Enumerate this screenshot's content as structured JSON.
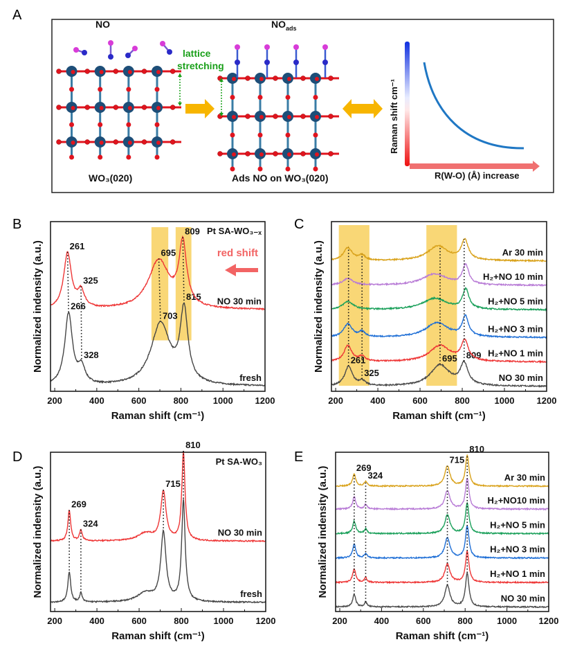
{
  "panel_a": {
    "label": "A",
    "left_molecule_label": "NO",
    "left_surface_label": "WO₃(020)",
    "right_molecule_label_main": "NO",
    "right_molecule_label_sub": "ads",
    "right_surface_label": "Ads NO on WO₃(020)",
    "lattice_label_line1": "lattice",
    "lattice_label_line2": "stretching",
    "schematic_y_label": "Raman shift cm⁻¹",
    "schematic_x_label": "R(W-O) (Å) increase",
    "colors": {
      "W": "#1d4e78",
      "O": "#e0141e",
      "N": "#2a2ac8",
      "O_ads": "#d83cd8",
      "arrow": "#f7b500",
      "lattice": "#1aa01a",
      "curve": "#1f77c4"
    }
  },
  "chart_data": [
    {
      "panel": "B",
      "type": "line",
      "xlabel": "Raman shift (cm⁻¹)",
      "ylabel": "Normalized indensity (a.u.)",
      "xlim": [
        180,
        1200
      ],
      "xticks": [
        200,
        400,
        600,
        800,
        1000,
        1200
      ],
      "corner_label": "Pt SA-WO₃₋ₓ",
      "annotation": "red shift",
      "annotation_color": "#f26464",
      "bands": [
        [
          660,
          740
        ],
        [
          775,
          850
        ]
      ],
      "band_color": "#f7c948",
      "series": [
        {
          "name": "fresh",
          "color": "#454545",
          "baseline": 0.03,
          "peaks": [
            [
              266,
              0.44,
              22,
              "266"
            ],
            [
              328,
              0.1,
              20,
              "328"
            ],
            [
              703,
              0.38,
              55,
              "703"
            ],
            [
              815,
              0.44,
              22,
              "815"
            ]
          ]
        },
        {
          "name": "NO 30 min",
          "color": "#ee3535",
          "baseline": 0.5,
          "peaks": [
            [
              261,
              0.34,
              22,
              "261"
            ],
            [
              325,
              0.1,
              20,
              "325"
            ],
            [
              695,
              0.3,
              60,
              "695"
            ],
            [
              809,
              0.38,
              22,
              "809"
            ]
          ]
        }
      ]
    },
    {
      "panel": "C",
      "type": "line",
      "xlabel": "Raman shift (cm⁻¹)",
      "ylabel": "Normalized indensity (a.u.)",
      "xlim": [
        180,
        1200
      ],
      "xticks": [
        200,
        400,
        600,
        800,
        1000,
        1200
      ],
      "bands": [
        [
          215,
          360
        ],
        [
          630,
          775
        ]
      ],
      "band_color": "#f7c948",
      "guides": [
        261,
        325,
        695,
        809
      ],
      "series": [
        {
          "name": "NO  30 min",
          "color": "#4a4a4a",
          "baseline": 0.03,
          "peaks": [
            [
              261,
              0.12,
              22,
              "261"
            ],
            [
              325,
              0.03,
              18,
              "325"
            ],
            [
              695,
              0.13,
              55,
              "695"
            ],
            [
              809,
              0.13,
              22,
              "809"
            ]
          ]
        },
        {
          "name": "H₂+NO  1 min",
          "color": "#ee3535",
          "baseline": 0.18,
          "peaks": [
            [
              258,
              0.1,
              22
            ],
            [
              325,
              0.03,
              18
            ],
            [
              695,
              0.1,
              60
            ],
            [
              812,
              0.12,
              20
            ]
          ]
        },
        {
          "name": "H₂+NO  3 min",
          "color": "#1f6fd6",
          "baseline": 0.33,
          "peaks": [
            [
              258,
              0.08,
              25
            ],
            [
              325,
              0.03,
              18
            ],
            [
              680,
              0.09,
              65
            ],
            [
              815,
              0.12,
              18
            ]
          ]
        },
        {
          "name": "H₂+NO  5 min",
          "color": "#1aa05a",
          "baseline": 0.5,
          "peaks": [
            [
              258,
              0.05,
              30
            ],
            [
              670,
              0.07,
              70
            ],
            [
              817,
              0.12,
              18
            ]
          ]
        },
        {
          "name": "H₂+NO 10 min",
          "color": "#b87bd6",
          "baseline": 0.65,
          "peaks": [
            [
              258,
              0.04,
              30
            ],
            [
              670,
              0.07,
              70
            ],
            [
              816,
              0.12,
              18
            ]
          ]
        },
        {
          "name": "Ar  30 min",
          "color": "#d9a21b",
          "baseline": 0.8,
          "peaks": [
            [
              258,
              0.08,
              25
            ],
            [
              325,
              0.03,
              18
            ],
            [
              685,
              0.09,
              60
            ],
            [
              812,
              0.12,
              20
            ]
          ]
        }
      ]
    },
    {
      "panel": "D",
      "type": "line",
      "xlabel": "Raman shift (cm⁻¹)",
      "ylabel": "Normalized indensity (a.u.)",
      "xlim": [
        180,
        1200
      ],
      "xticks": [
        200,
        400,
        600,
        800,
        1000,
        1200
      ],
      "corner_label": "Pt SA-WO₃",
      "series": [
        {
          "name": "fresh",
          "color": "#454545",
          "baseline": 0.06,
          "peaks": [
            [
              269,
              0.2,
              8
            ],
            [
              324,
              0.06,
              7
            ],
            [
              630,
              0.06,
              45
            ],
            [
              715,
              0.45,
              15
            ],
            [
              810,
              0.66,
              10
            ]
          ]
        },
        {
          "name": "NO 30 min",
          "color": "#ee3535",
          "baseline": 0.46,
          "peaks": [
            [
              269,
              0.2,
              8,
              "269"
            ],
            [
              324,
              0.07,
              8,
              "324"
            ],
            [
              630,
              0.05,
              45
            ],
            [
              715,
              0.32,
              15,
              "715"
            ],
            [
              810,
              0.58,
              9,
              "810"
            ]
          ]
        }
      ]
    },
    {
      "panel": "E",
      "type": "line",
      "xlabel": "Raman shift (cm⁻¹)",
      "ylabel": "Normalized indensity (a.u.)",
      "xlim": [
        180,
        1200
      ],
      "xticks": [
        200,
        400,
        600,
        800,
        1000,
        1200
      ],
      "guides": [
        269,
        324,
        715,
        810
      ],
      "series": [
        {
          "name": "NO  30 min",
          "color": "#4a4a4a",
          "baseline": 0.03,
          "peaks": [
            [
              269,
              0.08,
              9
            ],
            [
              324,
              0.03,
              8
            ],
            [
              715,
              0.14,
              15
            ],
            [
              810,
              0.22,
              10
            ]
          ]
        },
        {
          "name": "H₂+NO 1 min",
          "color": "#ee3535",
          "baseline": 0.19,
          "peaks": [
            [
              269,
              0.09,
              9
            ],
            [
              324,
              0.03,
              8
            ],
            [
              715,
              0.12,
              15
            ],
            [
              810,
              0.2,
              10
            ]
          ]
        },
        {
          "name": "H₂+NO 3 min",
          "color": "#1f6fd6",
          "baseline": 0.35,
          "peaks": [
            [
              269,
              0.09,
              9
            ],
            [
              324,
              0.03,
              8
            ],
            [
              715,
              0.13,
              15
            ],
            [
              810,
              0.21,
              10
            ]
          ]
        },
        {
          "name": "H₂+NO 5 min",
          "color": "#1aa05a",
          "baseline": 0.51,
          "peaks": [
            [
              269,
              0.08,
              9
            ],
            [
              324,
              0.03,
              8
            ],
            [
              715,
              0.12,
              15
            ],
            [
              810,
              0.2,
              10
            ]
          ]
        },
        {
          "name": "H₂+NO10 min",
          "color": "#b87bd6",
          "baseline": 0.67,
          "peaks": [
            [
              269,
              0.08,
              9
            ],
            [
              324,
              0.03,
              8
            ],
            [
              715,
              0.12,
              15
            ],
            [
              810,
              0.2,
              10
            ]
          ]
        },
        {
          "name": "Ar  30 min",
          "color": "#d9a21b",
          "baseline": 0.82,
          "peaks": [
            [
              269,
              0.08,
              9,
              "269"
            ],
            [
              324,
              0.03,
              8,
              "324"
            ],
            [
              715,
              0.13,
              15,
              "715"
            ],
            [
              810,
              0.2,
              10,
              "810"
            ]
          ]
        }
      ]
    }
  ]
}
